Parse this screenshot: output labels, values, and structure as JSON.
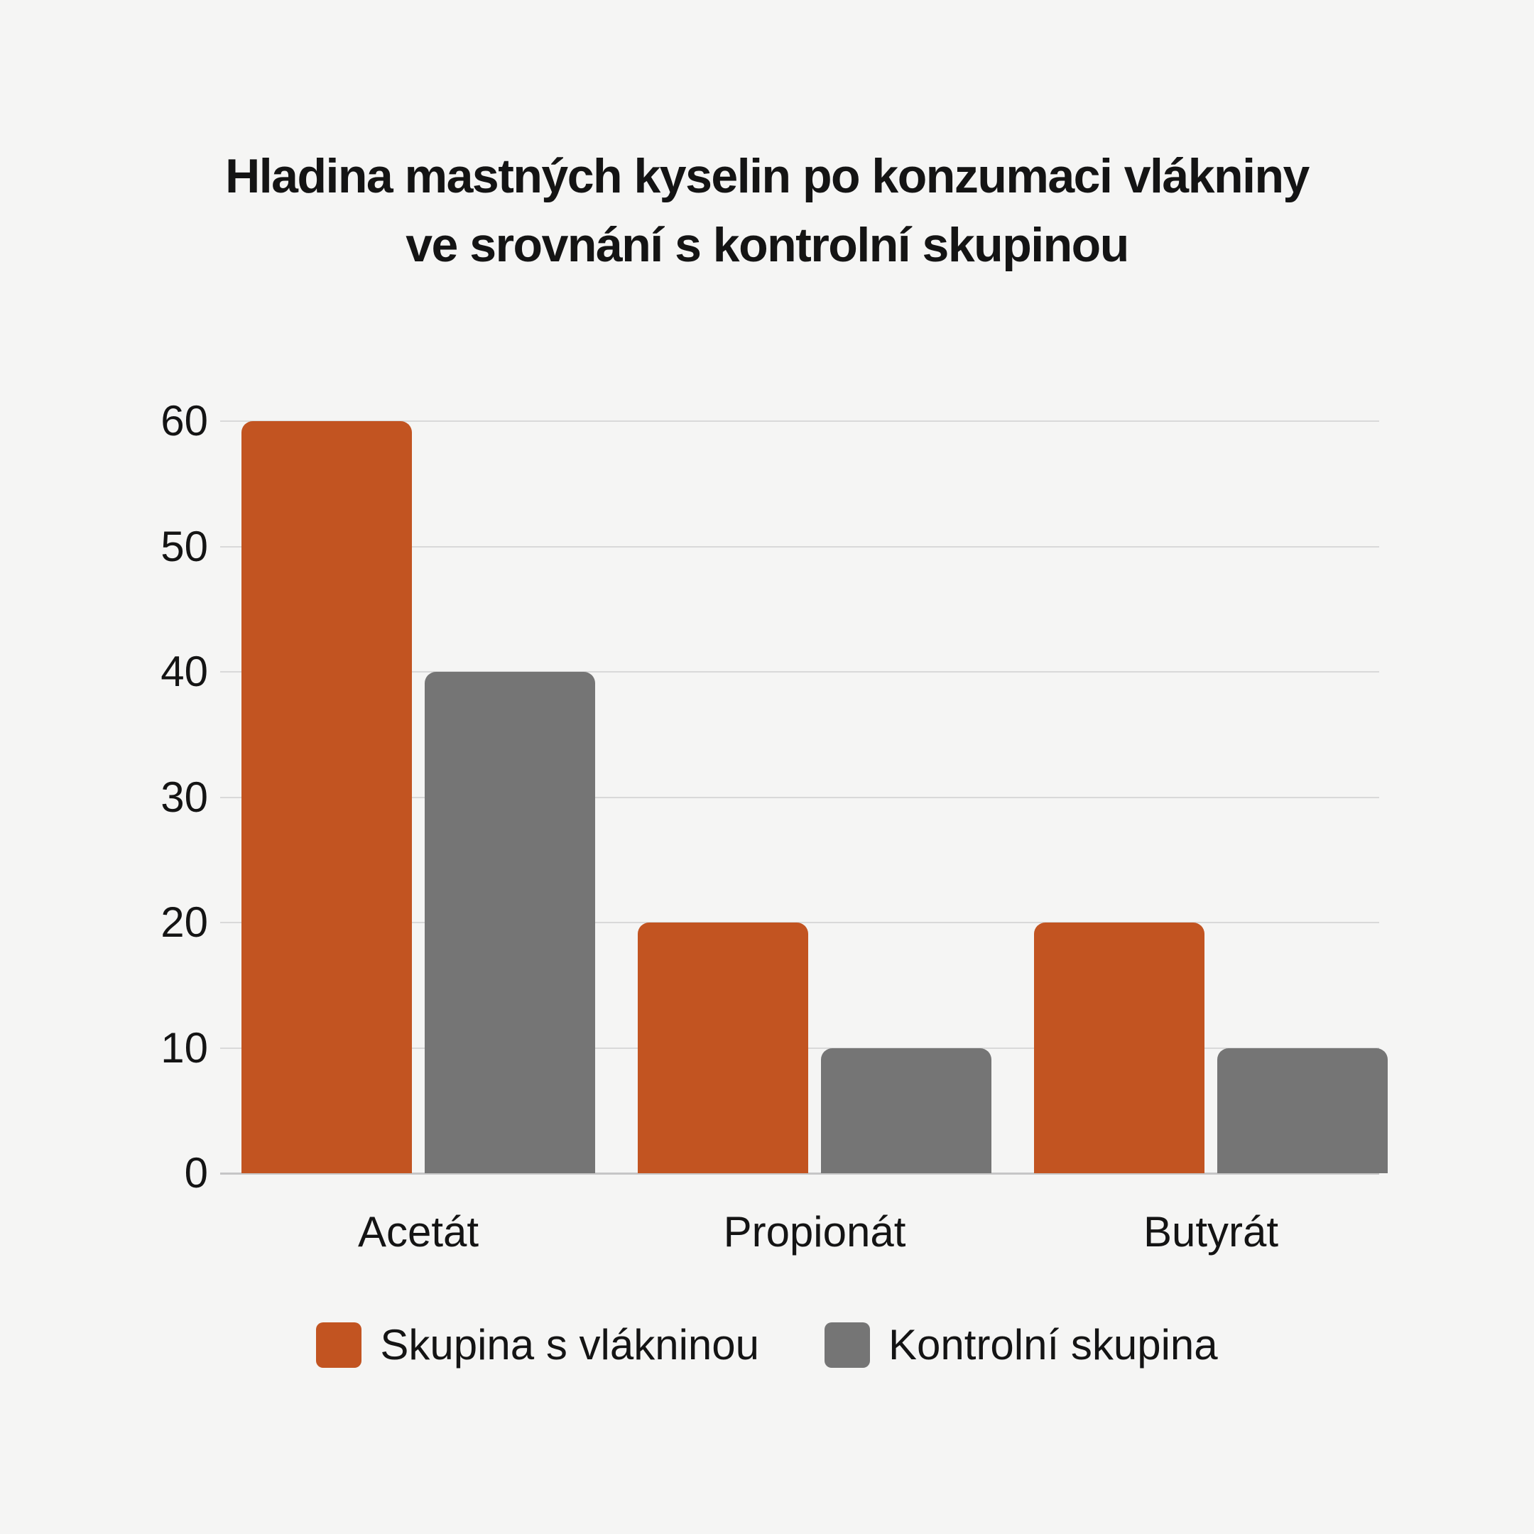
{
  "title": {
    "line1": "Hladina mastných kyselin po konzumaci vlákniny",
    "line2": "ve srovnání s kontrolní skupinou"
  },
  "chart_data": {
    "type": "bar",
    "title": "Hladina mastných kyselin po konzumaci vlákniny ve srovnání s kontrolní skupinou",
    "categories": [
      "Acetát",
      "Propionát",
      "Butyrát"
    ],
    "series": [
      {
        "name": "Skupina s vlákninou",
        "color": "#c25421",
        "values": [
          60,
          20,
          20
        ]
      },
      {
        "name": "Kontrolní skupina",
        "color": "#757575",
        "values": [
          40,
          10,
          10
        ]
      }
    ],
    "xlabel": "",
    "ylabel": "",
    "ylim": [
      0,
      60
    ],
    "yticks": [
      0,
      10,
      20,
      30,
      40,
      50,
      60
    ],
    "grid": true,
    "legend_position": "bottom",
    "colors": {
      "background": "#f5f5f4",
      "gridline": "#d9d9d9",
      "axis_line": "#c6c6c6",
      "text": "#141414"
    }
  }
}
